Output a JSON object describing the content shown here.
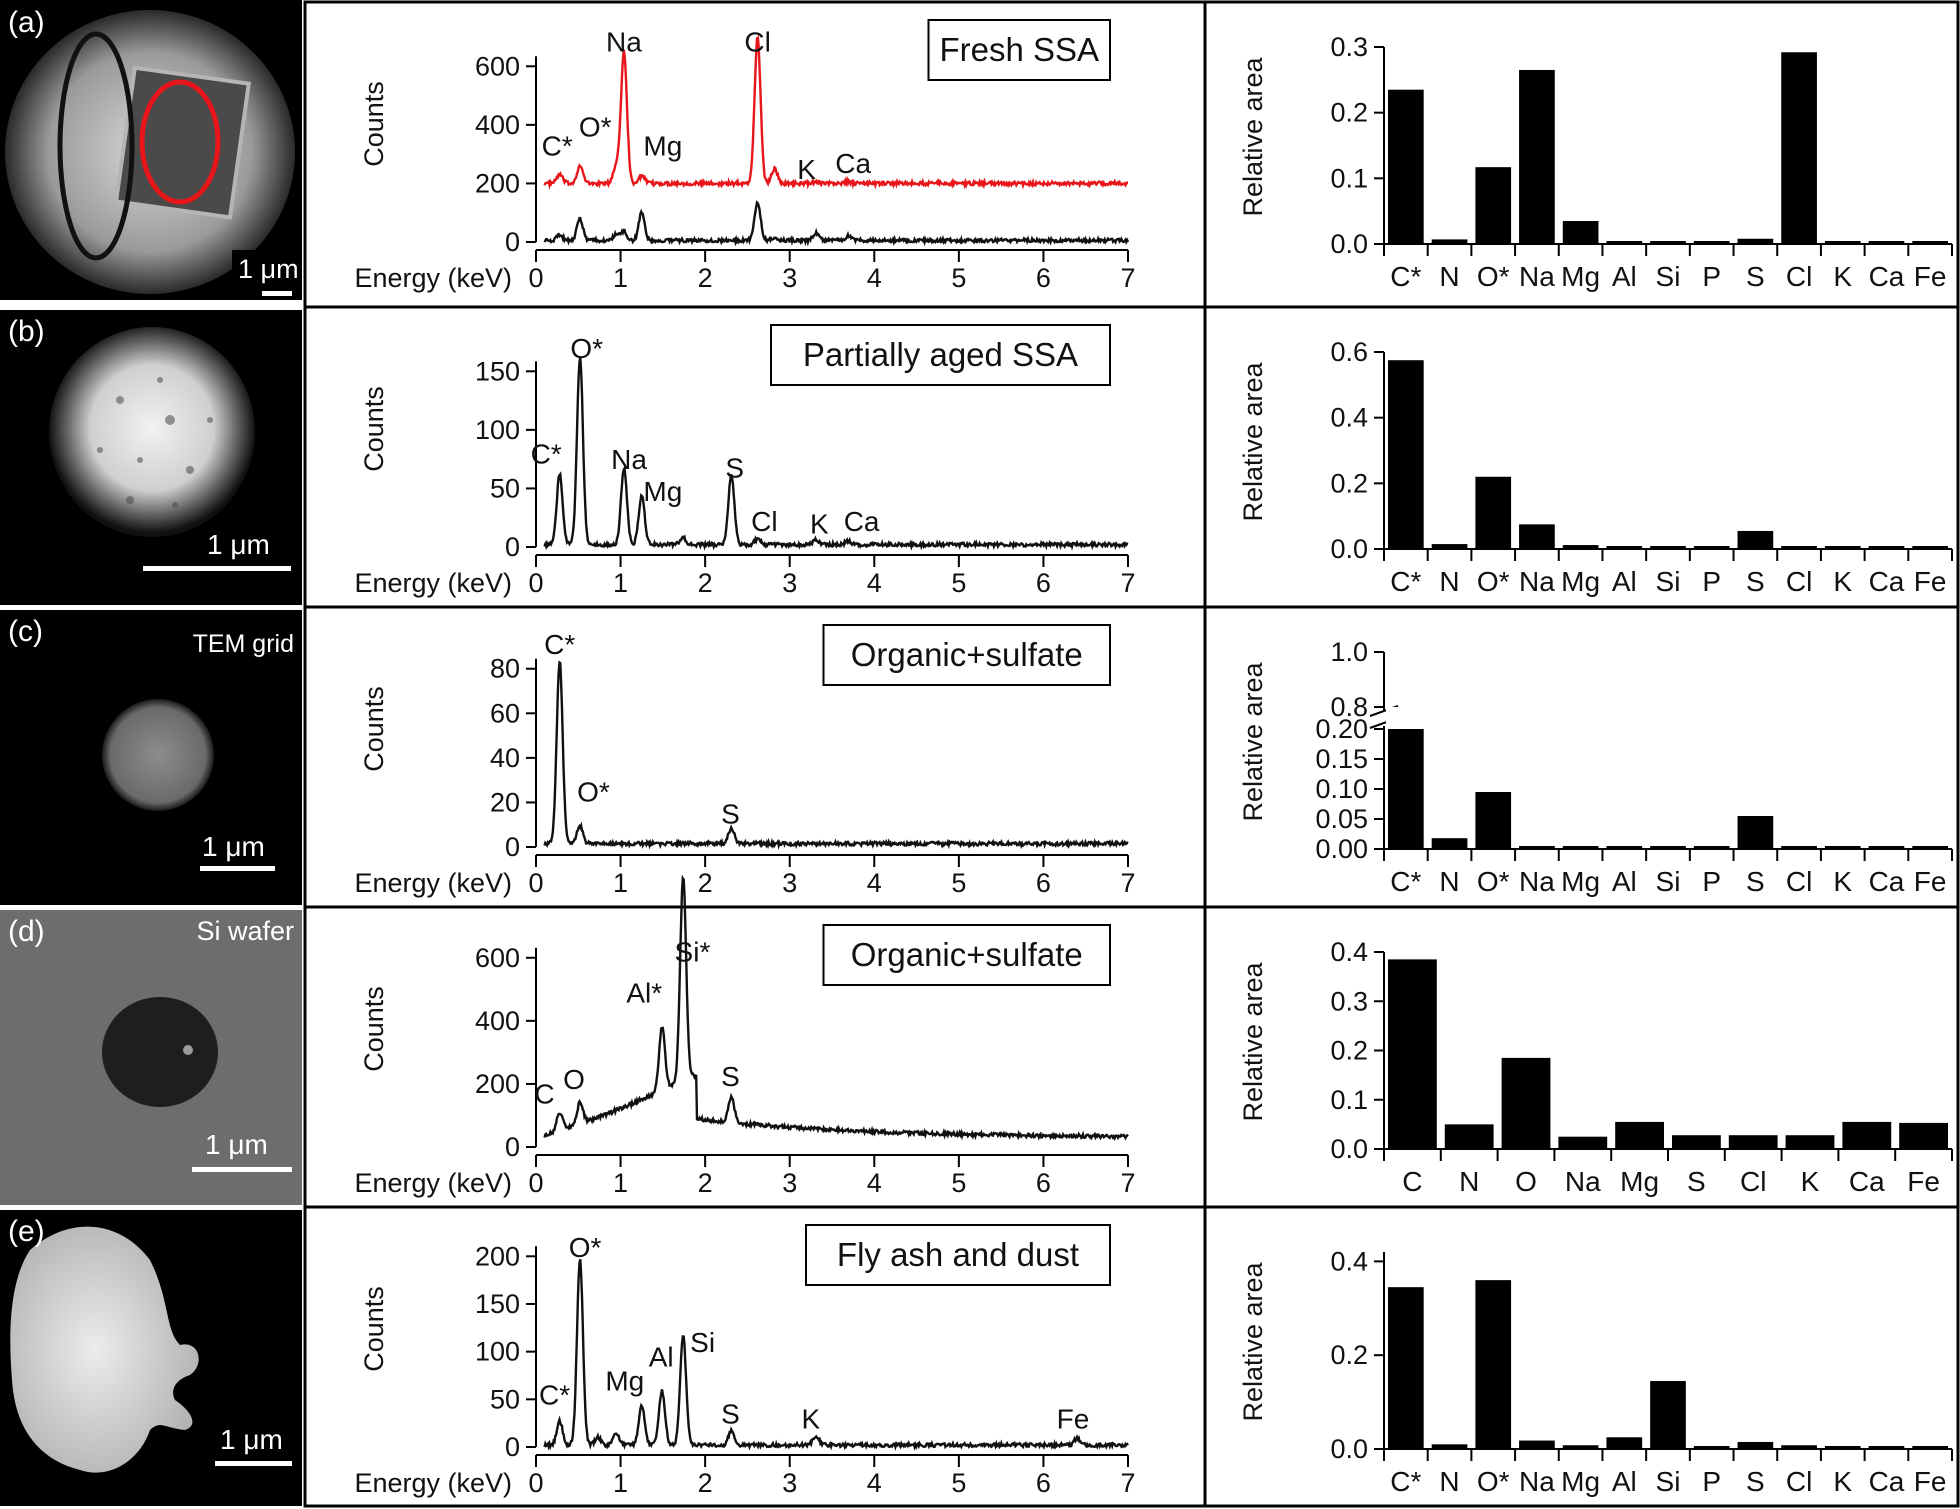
{
  "colors": {
    "spectrum_particle": "#e8161b",
    "spectrum_black": "#111111",
    "bar": "#000000",
    "image_bg": "#000000",
    "si_wafer_bg": "#6d6d6d"
  },
  "images": [
    {
      "panel": "(a)",
      "scale": "1 μm",
      "label": ""
    },
    {
      "panel": "(b)",
      "scale": "1 μm",
      "label": ""
    },
    {
      "panel": "(c)",
      "scale": "1 μm",
      "label": "TEM grid"
    },
    {
      "panel": "(d)",
      "scale": "1 μm",
      "label": "Si wafer"
    },
    {
      "panel": "(e)",
      "scale": "1 μm",
      "label": ""
    }
  ],
  "chart_data": [
    {
      "type": "line",
      "panel": "(a)",
      "title": "Fresh SSA",
      "xlabel": "Energy (keV)",
      "ylabel": "Counts",
      "xlim": [
        0,
        7
      ],
      "ylim": [
        0,
        700
      ],
      "xticks": [
        0,
        1,
        2,
        3,
        4,
        5,
        6,
        7
      ],
      "yticks": [
        0,
        200,
        400,
        600
      ],
      "series": [
        {
          "color": "#e8161b",
          "baseline": 200,
          "peaks": [
            [
              0.28,
              30
            ],
            [
              0.52,
              60
            ],
            [
              0.95,
              60
            ],
            [
              1.04,
              450
            ],
            [
              1.25,
              25
            ],
            [
              2.62,
              500
            ],
            [
              2.82,
              50
            ],
            [
              3.31,
              6
            ],
            [
              3.69,
              6
            ]
          ]
        },
        {
          "color": "#111111",
          "baseline": 5,
          "peaks": [
            [
              0.28,
              20
            ],
            [
              0.52,
              75
            ],
            [
              0.95,
              20
            ],
            [
              1.04,
              30
            ],
            [
              1.25,
              95
            ],
            [
              2.62,
              130
            ],
            [
              2.82,
              12
            ],
            [
              3.31,
              25
            ],
            [
              3.69,
              15
            ]
          ]
        }
      ],
      "annotations": [
        {
          "text": "Na",
          "x": 1.04,
          "y": 685
        },
        {
          "text": "Cl",
          "x": 2.62,
          "y": 685
        },
        {
          "text": "C*",
          "x": 0.25,
          "y": 330
        },
        {
          "text": "O*",
          "x": 0.7,
          "y": 395
        },
        {
          "text": "Mg",
          "x": 1.5,
          "y": 330
        },
        {
          "text": "K",
          "x": 3.2,
          "y": 250
        },
        {
          "text": "Ca",
          "x": 3.75,
          "y": 270
        }
      ]
    },
    {
      "type": "line",
      "panel": "(b)",
      "title": "Partially aged SSA",
      "xlabel": "Energy (keV)",
      "ylabel": "Counts",
      "xlim": [
        0,
        7
      ],
      "ylim": [
        0,
        175
      ],
      "xticks": [
        0,
        1,
        2,
        3,
        4,
        5,
        6,
        7
      ],
      "yticks": [
        0,
        50,
        100,
        150
      ],
      "series": [
        {
          "color": "#111111",
          "baseline": 2,
          "peaks": [
            [
              0.28,
              60
            ],
            [
              0.52,
              160
            ],
            [
              1.04,
              65
            ],
            [
              1.25,
              42
            ],
            [
              1.74,
              6
            ],
            [
              2.31,
              60
            ],
            [
              2.62,
              5
            ],
            [
              3.31,
              4
            ],
            [
              3.69,
              3
            ]
          ]
        }
      ],
      "annotations": [
        {
          "text": "O*",
          "x": 0.6,
          "y": 170
        },
        {
          "text": "C*",
          "x": 0.12,
          "y": 80
        },
        {
          "text": "Na",
          "x": 1.1,
          "y": 75
        },
        {
          "text": "Mg",
          "x": 1.5,
          "y": 48
        },
        {
          "text": "S",
          "x": 2.35,
          "y": 68
        },
        {
          "text": "Cl",
          "x": 2.7,
          "y": 22
        },
        {
          "text": "K",
          "x": 3.35,
          "y": 20
        },
        {
          "text": "Ca",
          "x": 3.85,
          "y": 22
        }
      ]
    },
    {
      "type": "line",
      "panel": "(c)",
      "title": "Organic+sulfate",
      "xlabel": "Energy (keV)",
      "ylabel": "Counts",
      "xlim": [
        0,
        7
      ],
      "ylim": [
        0,
        92
      ],
      "xticks": [
        0,
        1,
        2,
        3,
        4,
        5,
        6,
        7
      ],
      "yticks": [
        0,
        20,
        40,
        60,
        80
      ],
      "series": [
        {
          "color": "#111111",
          "baseline": 1.5,
          "peaks": [
            [
              0.28,
              82
            ],
            [
              0.52,
              8
            ],
            [
              2.31,
              7
            ]
          ]
        }
      ],
      "annotations": [
        {
          "text": "C*",
          "x": 0.28,
          "y": 91
        },
        {
          "text": "O*",
          "x": 0.68,
          "y": 25
        },
        {
          "text": "S",
          "x": 2.3,
          "y": 15
        }
      ]
    },
    {
      "type": "line",
      "panel": "(d)",
      "title": "Organic+sulfate",
      "xlabel": "Energy (keV)",
      "ylabel": "Counts",
      "xlim": [
        0,
        7
      ],
      "ylim": [
        0,
        650
      ],
      "xticks": [
        0,
        1,
        2,
        3,
        4,
        5,
        6,
        7
      ],
      "yticks": [
        0,
        200,
        400,
        600
      ],
      "series": [
        {
          "color": "#111111",
          "baseline": 20,
          "peaks": [
            [
              0.28,
              60
            ],
            [
              0.52,
              70
            ],
            [
              1.49,
              200
            ],
            [
              1.74,
              650
            ],
            [
              2.31,
              80
            ]
          ]
        }
      ],
      "annotations": [
        {
          "text": "Si*",
          "x": 1.85,
          "y": 620
        },
        {
          "text": "Al*",
          "x": 1.28,
          "y": 490
        },
        {
          "text": "C",
          "x": 0.1,
          "y": 170
        },
        {
          "text": "O",
          "x": 0.45,
          "y": 215
        },
        {
          "text": "S",
          "x": 2.3,
          "y": 225
        }
      ]
    },
    {
      "type": "line",
      "panel": "(e)",
      "title": "Fly ash and dust",
      "xlabel": "Energy (keV)",
      "ylabel": "Counts",
      "xlim": [
        0,
        7
      ],
      "ylim": [
        0,
        215
      ],
      "xticks": [
        0,
        1,
        2,
        3,
        4,
        5,
        6,
        7
      ],
      "yticks": [
        0,
        50,
        100,
        150,
        200
      ],
      "series": [
        {
          "color": "#111111",
          "baseline": 2,
          "peaks": [
            [
              0.28,
              25
            ],
            [
              0.52,
              195
            ],
            [
              0.73,
              8
            ],
            [
              0.95,
              12
            ],
            [
              1.25,
              42
            ],
            [
              1.49,
              57
            ],
            [
              1.74,
              115
            ],
            [
              2.31,
              15
            ],
            [
              3.31,
              10
            ],
            [
              6.4,
              7
            ]
          ]
        }
      ],
      "annotations": [
        {
          "text": "O*",
          "x": 0.58,
          "y": 210
        },
        {
          "text": "C*",
          "x": 0.22,
          "y": 55
        },
        {
          "text": "Mg",
          "x": 1.05,
          "y": 70
        },
        {
          "text": "Al",
          "x": 1.48,
          "y": 95
        },
        {
          "text": "Si",
          "x": 1.97,
          "y": 110
        },
        {
          "text": "S",
          "x": 2.3,
          "y": 35
        },
        {
          "text": "K",
          "x": 3.25,
          "y": 30
        },
        {
          "text": "Fe",
          "x": 6.35,
          "y": 30
        }
      ]
    },
    {
      "type": "bar",
      "panel": "(a)",
      "ylabel": "Relative area",
      "categories": [
        "C*",
        "N",
        "O*",
        "Na",
        "Mg",
        "Al",
        "Si",
        "P",
        "S",
        "Cl",
        "K",
        "Ca",
        "Fe"
      ],
      "values": [
        0.235,
        0.007,
        0.117,
        0.265,
        0.035,
        0.002,
        0.002,
        0.002,
        0.008,
        0.292,
        0.002,
        0.002,
        0.002
      ],
      "ylim": [
        0,
        0.3
      ],
      "yticks": [
        0.0,
        0.1,
        0.2,
        0.3
      ],
      "ytick_labels": [
        "0.0",
        "0.1",
        "0.2",
        "0.3"
      ]
    },
    {
      "type": "bar",
      "panel": "(b)",
      "ylabel": "Relative area",
      "categories": [
        "C*",
        "N",
        "O*",
        "Na",
        "Mg",
        "Al",
        "Si",
        "P",
        "S",
        "Cl",
        "K",
        "Ca",
        "Fe"
      ],
      "values": [
        0.575,
        0.015,
        0.22,
        0.075,
        0.012,
        0.002,
        0.002,
        0.002,
        0.055,
        0.004,
        0.002,
        0.002,
        0.002
      ],
      "ylim": [
        0,
        0.6
      ],
      "yticks": [
        0.0,
        0.2,
        0.4,
        0.6
      ],
      "ytick_labels": [
        "0.0",
        "0.2",
        "0.4",
        "0.6"
      ]
    },
    {
      "type": "bar",
      "panel": "(c)",
      "ylabel": "Relative area",
      "broken_axis": true,
      "categories": [
        "C*",
        "N",
        "O*",
        "Na",
        "Mg",
        "Al",
        "Si",
        "P",
        "S",
        "Cl",
        "K",
        "Ca",
        "Fe"
      ],
      "values": [
        0.8,
        0.018,
        0.095,
        0.002,
        0.002,
        0.002,
        0.002,
        0.002,
        0.055,
        0.002,
        0.002,
        0.002,
        0.002
      ],
      "yticks_lower": [
        0.0,
        0.05,
        0.1,
        0.15,
        0.2
      ],
      "ytick_labels_lower": [
        "0.00",
        "0.05",
        "0.10",
        "0.15",
        "0.20"
      ],
      "yticks_upper": [
        0.8,
        1.0
      ],
      "ytick_labels_upper": [
        "0.8",
        "1.0"
      ]
    },
    {
      "type": "bar",
      "panel": "(d)",
      "ylabel": "Relative area",
      "categories": [
        "C",
        "N",
        "O",
        "Na",
        "Mg",
        "S",
        "Cl",
        "K",
        "Ca",
        "Fe"
      ],
      "values": [
        0.385,
        0.05,
        0.185,
        0.025,
        0.055,
        0.028,
        0.028,
        0.028,
        0.055,
        0.053
      ],
      "ylim": [
        0,
        0.4
      ],
      "yticks": [
        0.0,
        0.1,
        0.2,
        0.3,
        0.4
      ],
      "ytick_labels": [
        "0.0",
        "0.1",
        "0.2",
        "0.3",
        "0.4"
      ]
    },
    {
      "type": "bar",
      "panel": "(e)",
      "ylabel": "Relative area",
      "categories": [
        "C*",
        "N",
        "O*",
        "Na",
        "Mg",
        "Al",
        "Si",
        "P",
        "S",
        "Cl",
        "K",
        "Ca",
        "Fe"
      ],
      "values": [
        0.345,
        0.01,
        0.36,
        0.018,
        0.008,
        0.025,
        0.145,
        0.003,
        0.015,
        0.008,
        0.002,
        0.002,
        0.002
      ],
      "ylim": [
        0,
        0.42
      ],
      "yticks": [
        0.0,
        0.2,
        0.4
      ],
      "ytick_labels": [
        "0.0",
        "0.2",
        "0.4"
      ]
    }
  ]
}
